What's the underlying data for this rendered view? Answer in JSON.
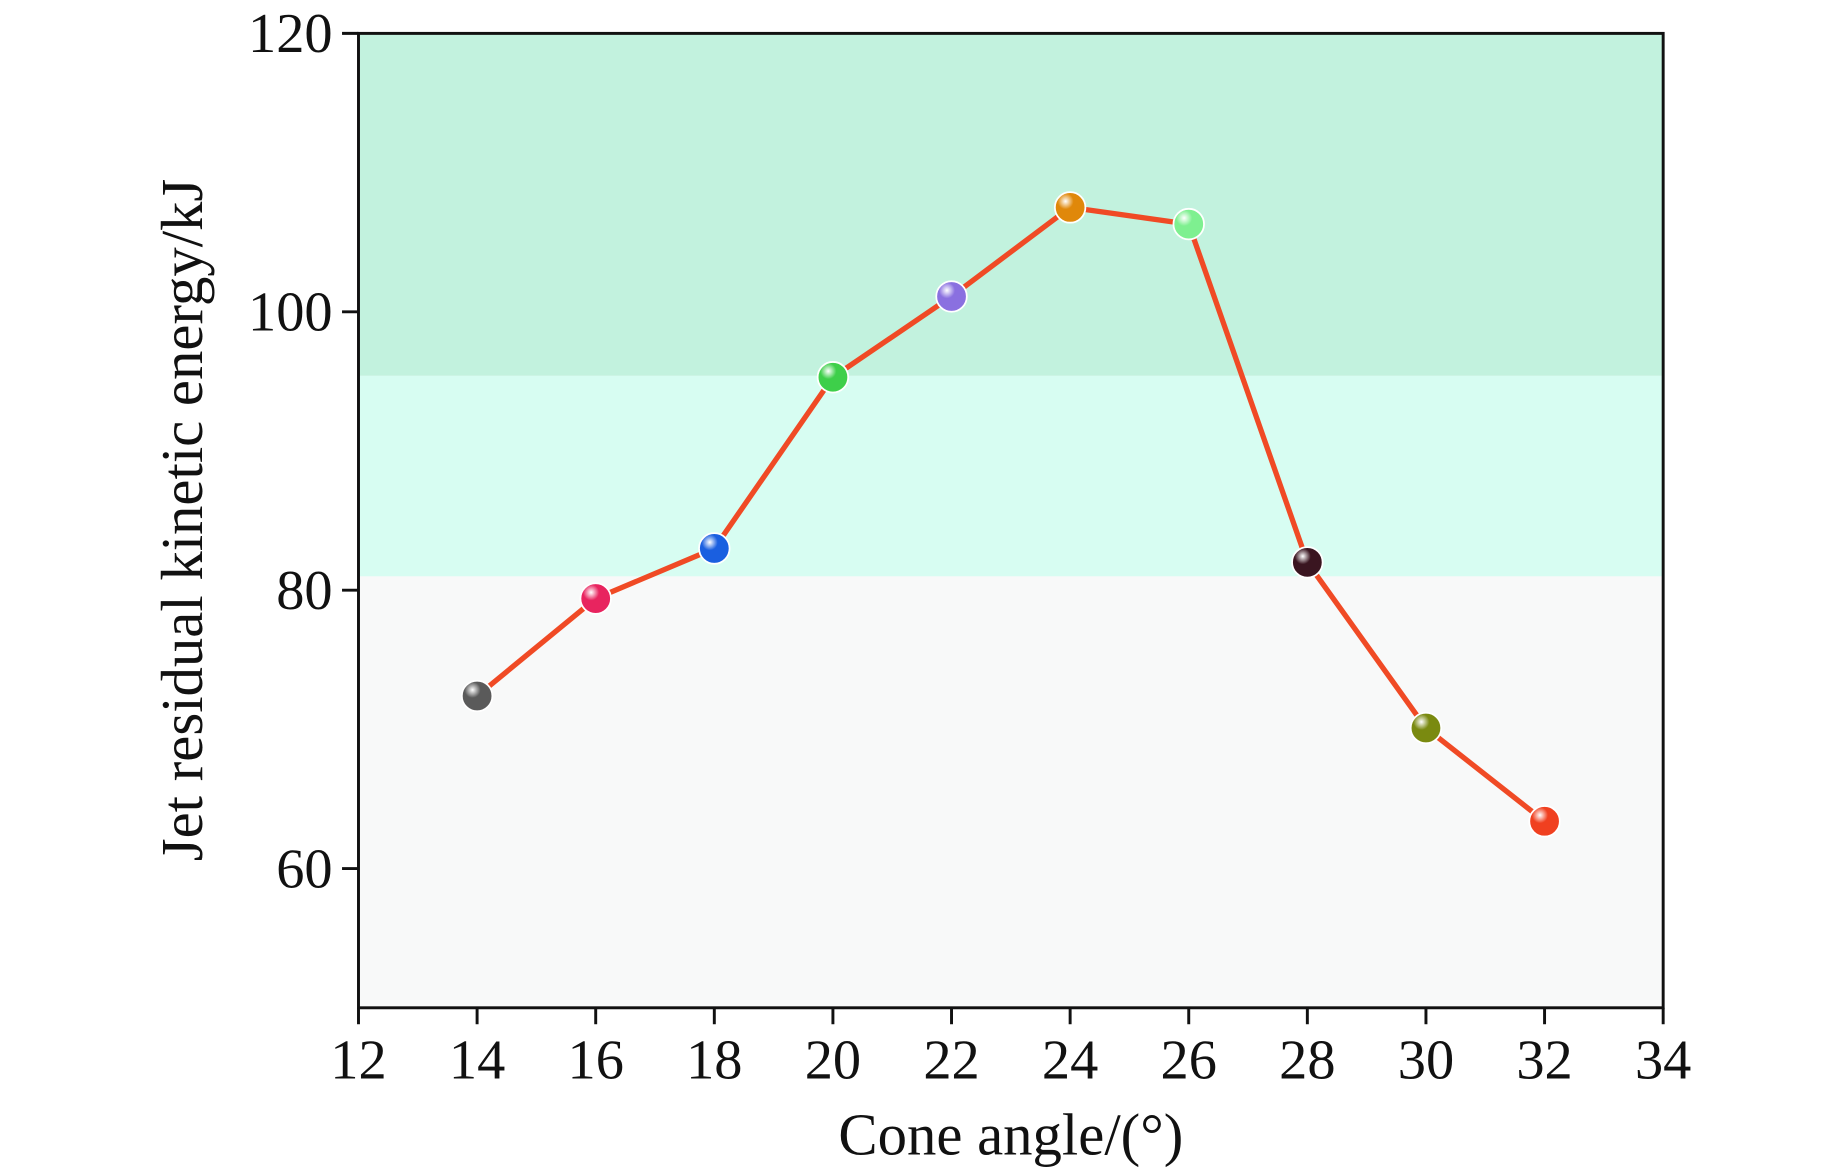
{
  "chart_data": {
    "type": "line",
    "x_label": "Cone angle/(°)",
    "y_label": "Jet residual kinetic energy/kJ",
    "x": [
      14,
      16,
      18,
      20,
      22,
      24,
      26,
      28,
      30,
      32
    ],
    "series": [
      {
        "color": "#f04a25",
        "values": [
          72.4,
          79.4,
          83.0,
          95.3,
          101.1,
          107.5,
          106.3,
          82.0,
          70.1,
          63.4
        ],
        "point_colors": [
          "#5a5a5a",
          "#e8245f",
          "#1a5fe0",
          "#3ecf4a",
          "#8a70e0",
          "#e0880a",
          "#7ef090",
          "#3a1520",
          "#7a8a10",
          "#f04020"
        ]
      }
    ],
    "xlim": [
      12,
      34
    ],
    "xticks": [
      12,
      14,
      16,
      18,
      20,
      22,
      24,
      26,
      28,
      30,
      32,
      34
    ],
    "ylim": [
      50,
      120
    ],
    "yticks": [
      60,
      80,
      100,
      120
    ],
    "background": "#f8f9f9",
    "bands": [
      {
        "from": 95.4,
        "to": 120,
        "color": "#c2f2de"
      },
      {
        "from": 81,
        "to": 95.4,
        "color": "#d7fdf2"
      }
    ]
  }
}
